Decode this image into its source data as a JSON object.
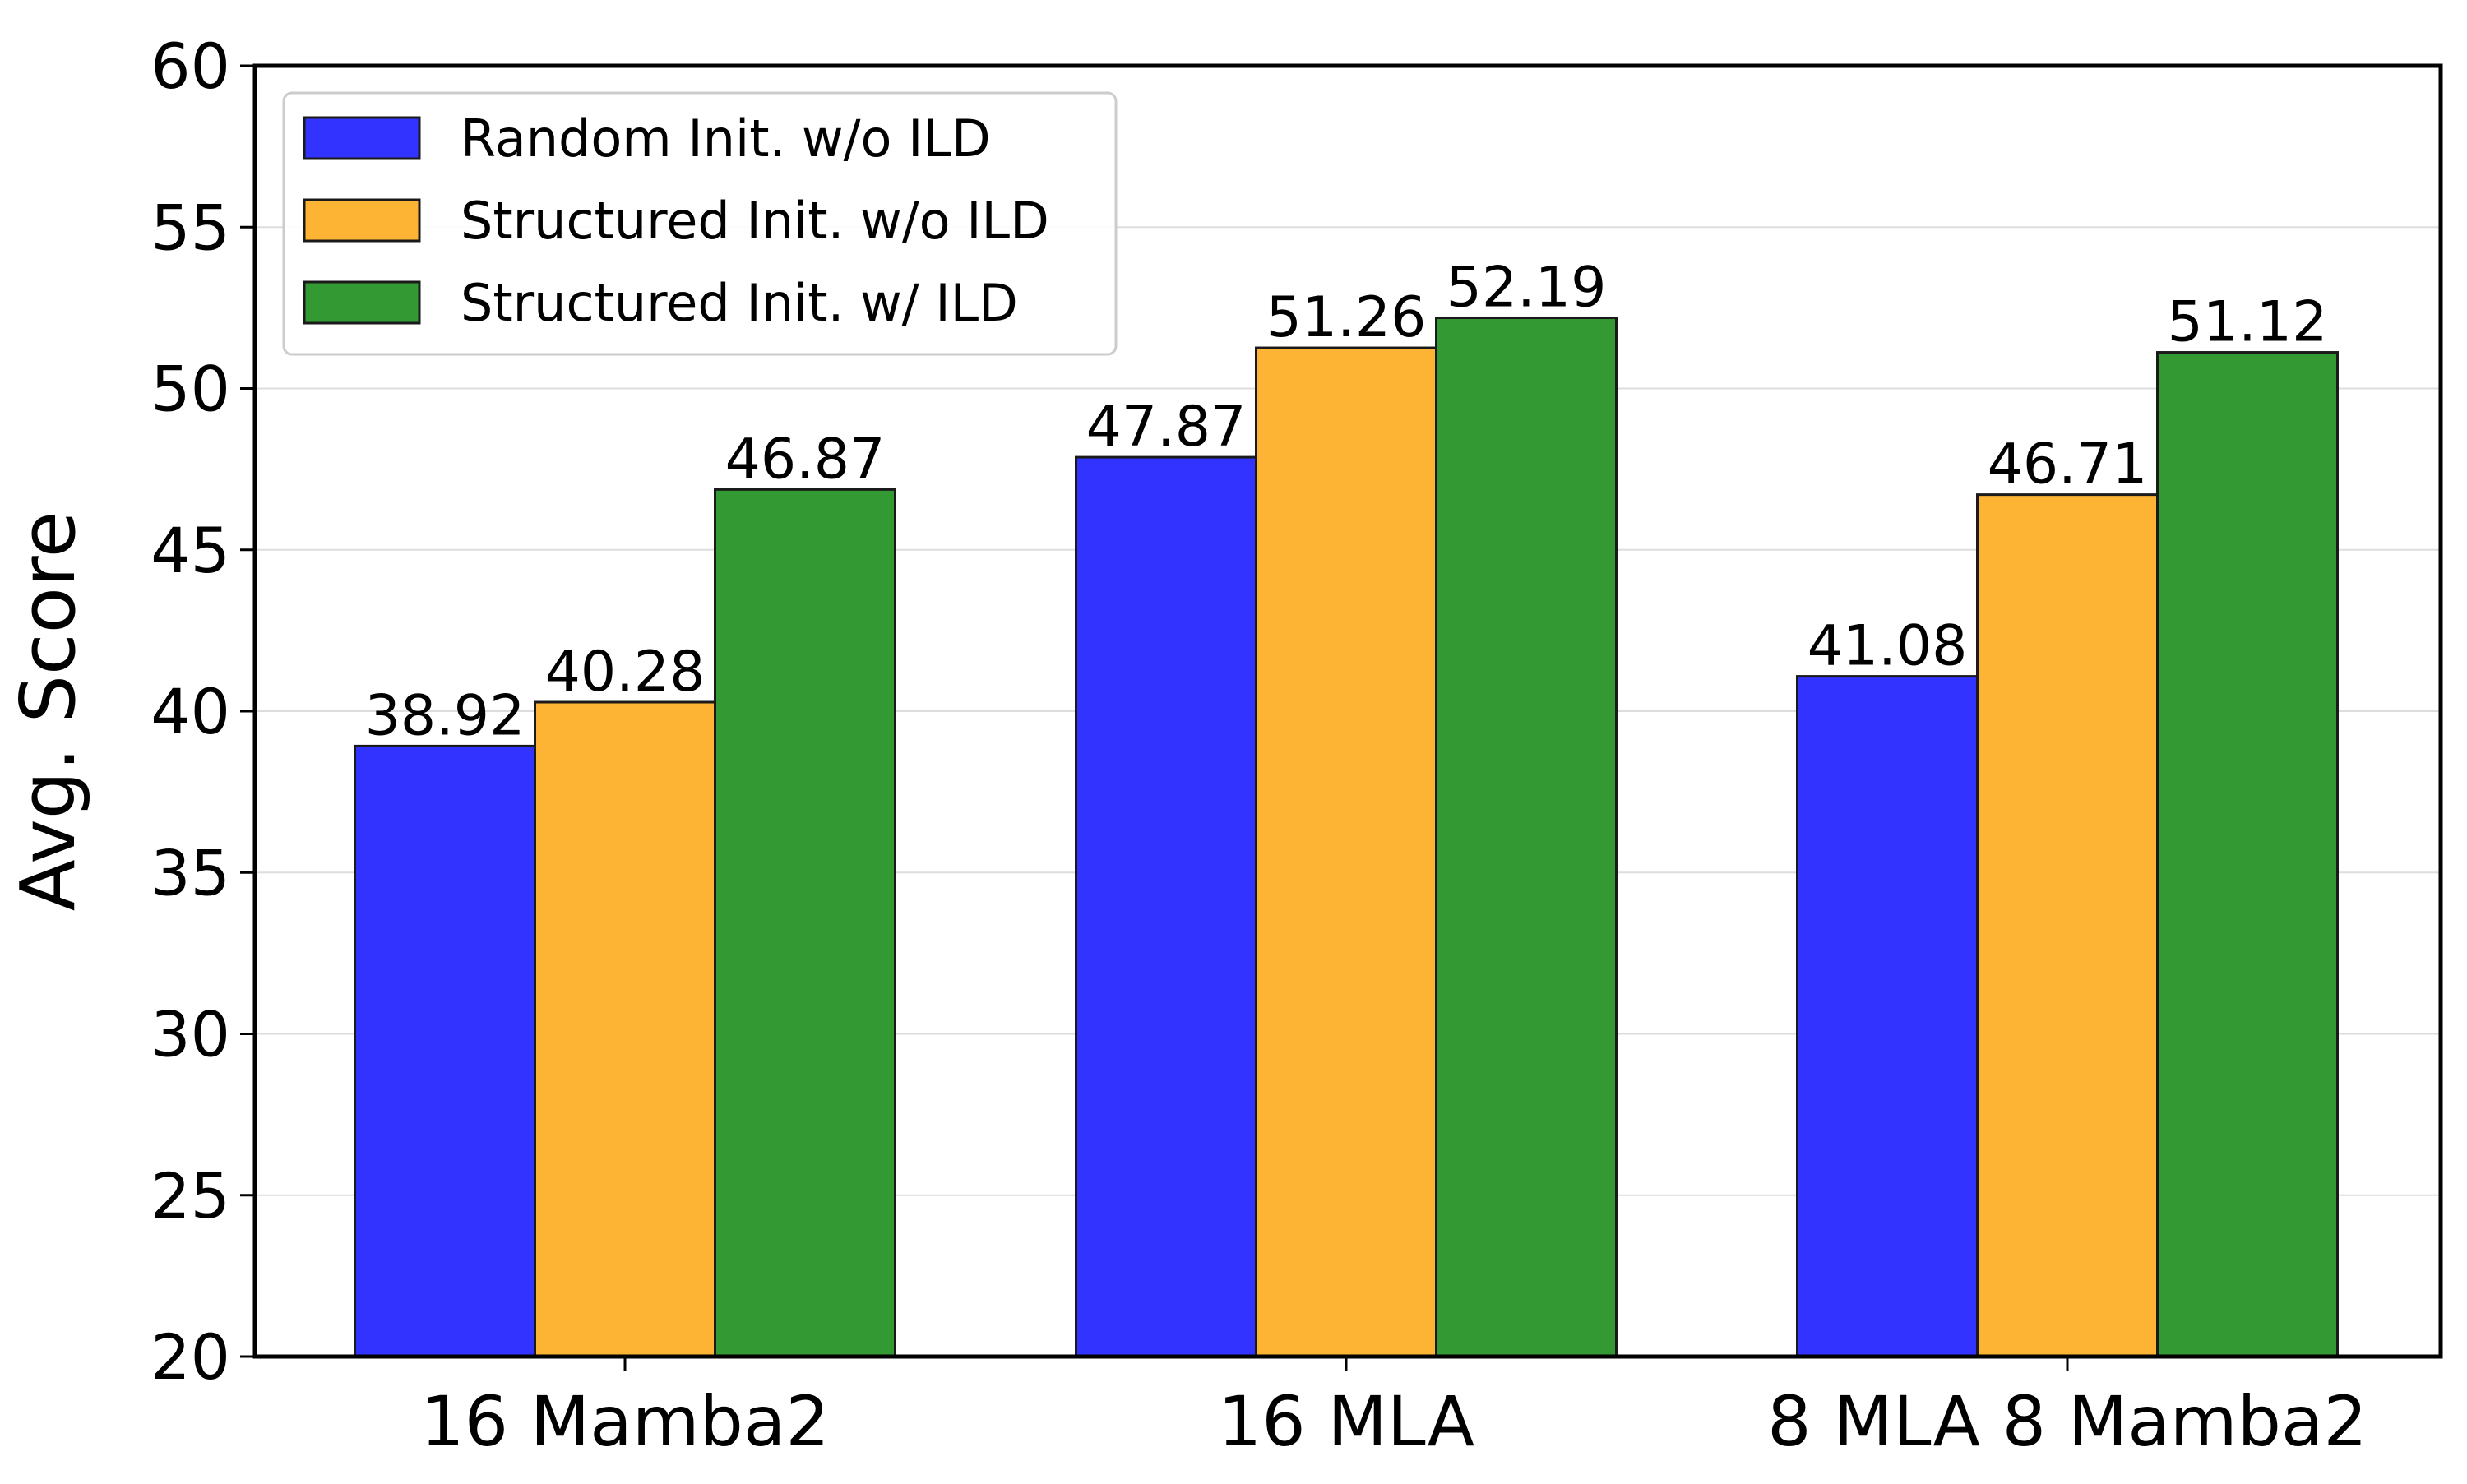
{
  "chart_data": {
    "type": "bar",
    "title": "",
    "xlabel": "",
    "ylabel": "Avg. Score",
    "ylim": [
      20,
      60
    ],
    "yticks": [
      20,
      25,
      30,
      35,
      40,
      45,
      50,
      55,
      60
    ],
    "grid": "horizontal",
    "legend_position": "top-left",
    "categories": [
      "16 Mamba2",
      "16 MLA",
      "8 MLA 8 Mamba2"
    ],
    "series": [
      {
        "name": "Random Init. w/o ILD",
        "color": "#3333ff",
        "values": [
          38.92,
          47.87,
          41.08
        ],
        "labels": [
          "38.92",
          "47.87",
          "41.08"
        ]
      },
      {
        "name": "Structured Init. w/o ILD",
        "color": "#fdb334",
        "values": [
          40.28,
          51.26,
          46.71
        ],
        "labels": [
          "40.28",
          "51.26",
          "46.71"
        ]
      },
      {
        "name": "Structured Init. w/ ILD",
        "color": "#339933",
        "values": [
          46.87,
          52.19,
          51.12
        ],
        "labels": [
          "46.87",
          "52.19",
          "51.12"
        ]
      }
    ]
  }
}
